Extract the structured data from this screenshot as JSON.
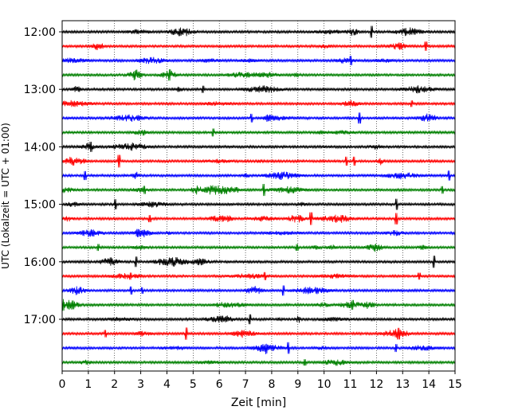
{
  "chart_data": {
    "type": "line",
    "title": "",
    "xlabel": "Zeit  [min]",
    "ylabel": "UTC (Lokalzeit = UTC + 01:00)",
    "xlim": [
      0,
      15
    ],
    "xticks": [
      0,
      1,
      2,
      3,
      4,
      5,
      6,
      7,
      8,
      9,
      10,
      11,
      12,
      13,
      14,
      15
    ],
    "x_grid": "vertical dotted at each minute",
    "ytick_labels": [
      "12:00",
      "13:00",
      "14:00",
      "15:00",
      "16:00",
      "17:00"
    ],
    "trace_interval_minutes": 15,
    "trace_colors_cycle": [
      "#000000",
      "#ff0000",
      "#0000ff",
      "#008000"
    ],
    "traces": [
      {
        "start": "12:00",
        "color": "#000000"
      },
      {
        "start": "12:15",
        "color": "#ff0000"
      },
      {
        "start": "12:30",
        "color": "#0000ff"
      },
      {
        "start": "12:45",
        "color": "#008000"
      },
      {
        "start": "13:00",
        "color": "#000000"
      },
      {
        "start": "13:15",
        "color": "#ff0000"
      },
      {
        "start": "13:30",
        "color": "#0000ff"
      },
      {
        "start": "13:45",
        "color": "#008000"
      },
      {
        "start": "14:00",
        "color": "#000000"
      },
      {
        "start": "14:15",
        "color": "#ff0000"
      },
      {
        "start": "14:30",
        "color": "#0000ff"
      },
      {
        "start": "14:45",
        "color": "#008000"
      },
      {
        "start": "15:00",
        "color": "#000000"
      },
      {
        "start": "15:15",
        "color": "#ff0000"
      },
      {
        "start": "15:30",
        "color": "#0000ff"
      },
      {
        "start": "15:45",
        "color": "#008000"
      },
      {
        "start": "16:00",
        "color": "#000000"
      },
      {
        "start": "16:15",
        "color": "#ff0000"
      },
      {
        "start": "16:30",
        "color": "#0000ff"
      },
      {
        "start": "16:45",
        "color": "#008000"
      },
      {
        "start": "17:00",
        "color": "#000000"
      },
      {
        "start": "17:15",
        "color": "#ff0000"
      },
      {
        "start": "17:30",
        "color": "#0000ff"
      },
      {
        "start": "17:45",
        "color": "#008000"
      }
    ]
  }
}
